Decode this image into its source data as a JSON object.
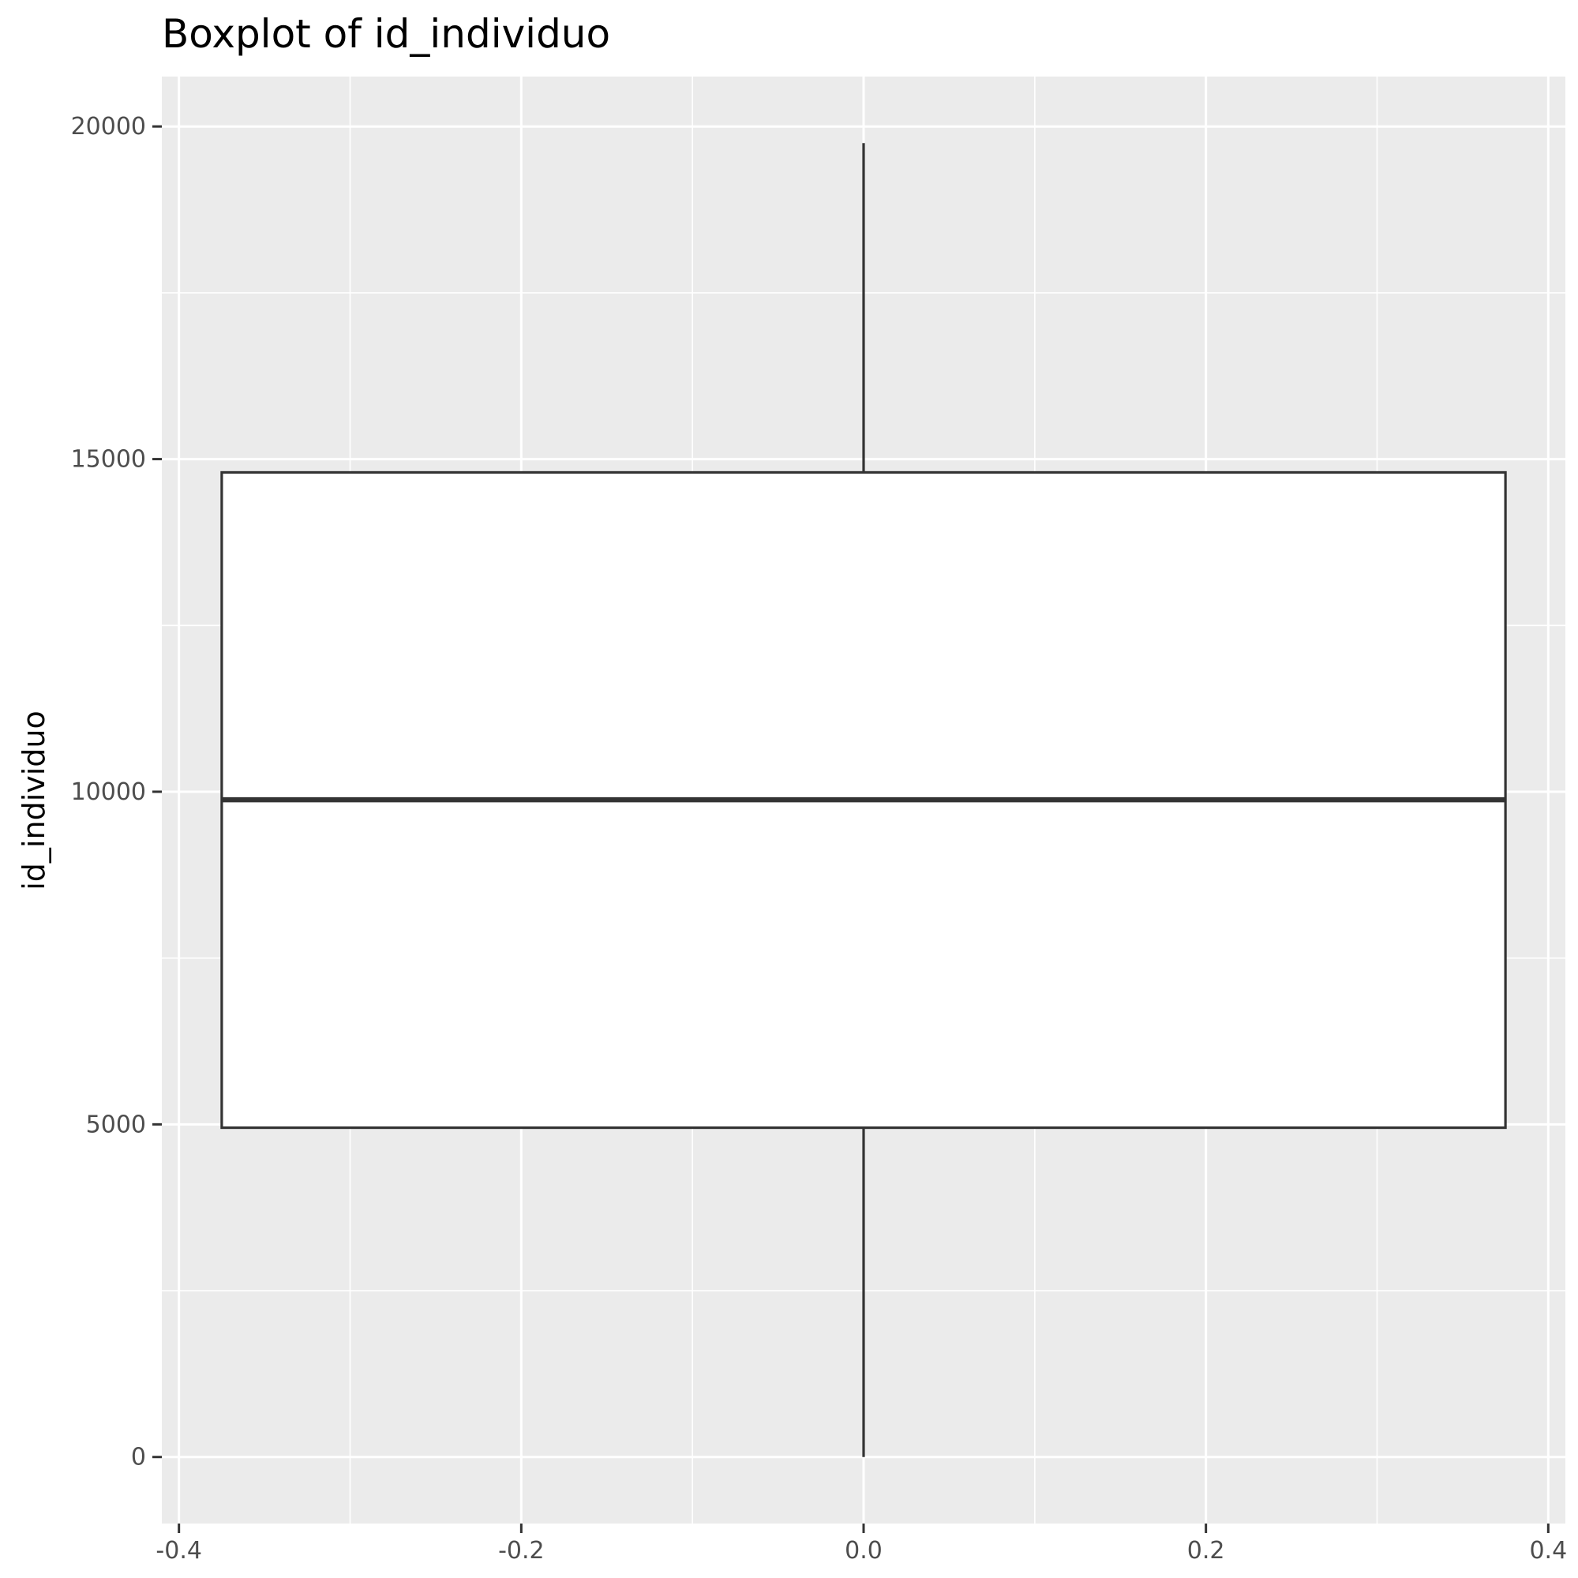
{
  "chart_data": {
    "type": "boxplot",
    "title": "Boxplot of id_individuo",
    "xlabel": "",
    "ylabel": "id_individuo",
    "xlim": [
      -0.41,
      0.41
    ],
    "ylim": [
      -1000,
      20750
    ],
    "x_ticks": [
      -0.4,
      -0.2,
      0.0,
      0.2,
      0.4
    ],
    "x_tick_labels": [
      "-0.4",
      "-0.2",
      "0.0",
      "0.2",
      "0.4"
    ],
    "y_ticks": [
      0,
      5000,
      10000,
      15000,
      20000
    ],
    "y_tick_labels": [
      "0",
      "5000",
      "10000",
      "15000",
      "20000"
    ],
    "grid": true,
    "panel_background": "#ebebeb",
    "grid_color": "#ffffff",
    "box": {
      "x_center": 0.0,
      "x_left": -0.375,
      "x_right": 0.375,
      "whisker_low": 0,
      "q1": 4950,
      "median": 9880,
      "q3": 14800,
      "whisker_high": 19750,
      "fill": "#ffffff",
      "stroke": "#333333"
    }
  }
}
